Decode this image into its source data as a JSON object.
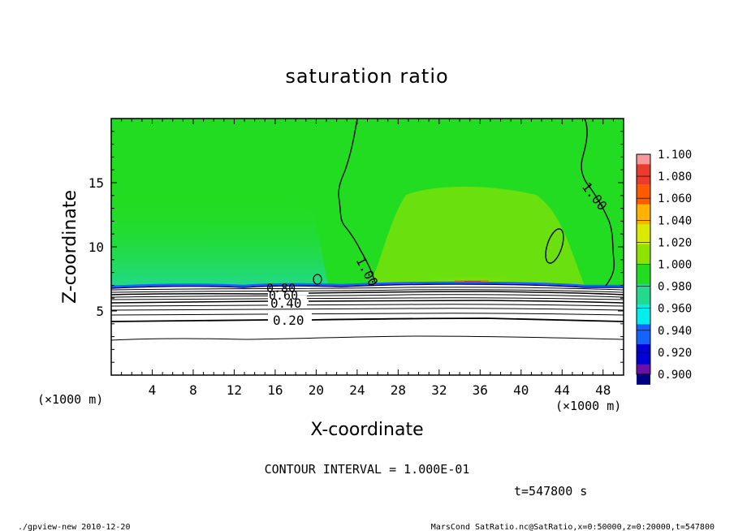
{
  "chart_data": {
    "type": "heatmap",
    "title": "saturation ratio",
    "xlabel": "X-coordinate",
    "ylabel": "Z-coordinate",
    "x_unit": "(×1000 m)",
    "y_unit": "(×1000 m)",
    "xlim": [
      0,
      50
    ],
    "ylim": [
      0,
      20
    ],
    "x_ticks": [
      4,
      8,
      12,
      16,
      20,
      24,
      28,
      32,
      36,
      40,
      44,
      48
    ],
    "y_ticks": [
      5,
      10,
      15
    ],
    "colorbar": {
      "levels": [
        "1.100",
        "1.080",
        "1.060",
        "1.040",
        "1.020",
        "1.000",
        "0.980",
        "0.960",
        "0.940",
        "0.920",
        "0.900"
      ],
      "colors": [
        "#f49a9a",
        "#ea3b2c",
        "#ff5a00",
        "#ffb300",
        "#d9ea00",
        "#8de200",
        "#22dc22",
        "#22d98e",
        "#00eeee",
        "#1463ff",
        "#0000d6",
        "#000080",
        "#6a10a8"
      ]
    },
    "contour_labels": [
      {
        "text": "1.00",
        "x": 25.5,
        "z": 8.6
      },
      {
        "text": "1.00",
        "x": 46.2,
        "z": 14.2
      },
      {
        "text": "0.80",
        "x": 16.6,
        "z": 6.9
      },
      {
        "text": "0.60",
        "x": 16.6,
        "z": 6.4
      },
      {
        "text": "0.40",
        "x": 16.3,
        "z": 5.6
      },
      {
        "text": "0.20",
        "x": 17.2,
        "z": 4.3
      }
    ],
    "contour_interval": "CONTOUR INTERVAL = 1.000E-01",
    "time": "t=547800 s",
    "footer_left": "./gpview-new  2010-12-20",
    "footer_right": "MarsCond_SatRatio.nc@SatRatio,x=0:50000,z=0:20000,t=547800"
  }
}
